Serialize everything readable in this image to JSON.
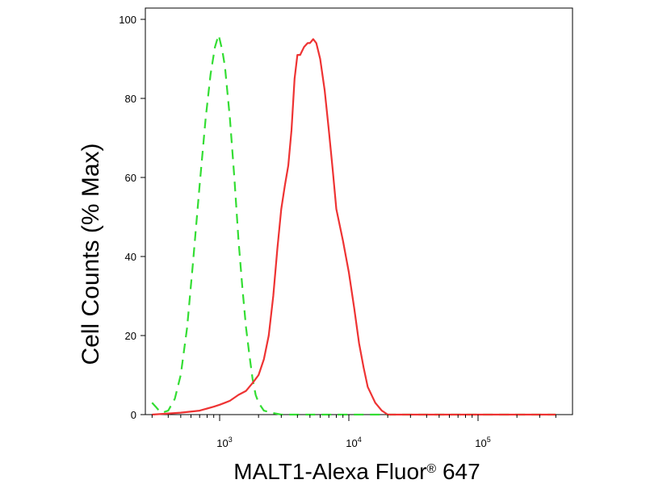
{
  "chart_data": {
    "type": "line",
    "title": "",
    "xlabel": "MALT1-Alexa Fluor",
    "xlabel_superscript": "®",
    "xlabel_suffix": " 647",
    "ylabel": "Cell Counts (% Max)",
    "xscale": "log",
    "xlim": [
      300,
      450000
    ],
    "ylim": [
      0,
      100
    ],
    "y_ticks": [
      0,
      20,
      40,
      60,
      80,
      100
    ],
    "y_tick_labels": [
      "0",
      "20",
      "40",
      "60",
      "80",
      "100"
    ],
    "x_ticks": [
      1000,
      10000,
      100000
    ],
    "x_tick_labels": [
      {
        "base": "10",
        "exp": "3"
      },
      {
        "base": "10",
        "exp": "4"
      },
      {
        "base": "10",
        "exp": "5"
      }
    ],
    "grid": false,
    "legend": "none",
    "series": [
      {
        "color": "#33dd33",
        "dash": "dashed",
        "x": [
          300,
          320,
          340,
          360,
          400,
          450,
          500,
          560,
          620,
          700,
          780,
          850,
          920,
          980,
          1000,
          1050,
          1100,
          1200,
          1300,
          1400,
          1500,
          1600,
          1700,
          1800,
          1900,
          2000,
          2200,
          2500,
          3000,
          5000,
          20000,
          400000
        ],
        "y": [
          3,
          2,
          1,
          0.5,
          1,
          4,
          10,
          22,
          38,
          58,
          75,
          86,
          93,
          96,
          95,
          92,
          88,
          75,
          60,
          44,
          32,
          22,
          15,
          9,
          5,
          3,
          1,
          0.5,
          0,
          0,
          0,
          0
        ]
      },
      {
        "color": "#ee3333",
        "dash": "solid",
        "x": [
          300,
          500,
          700,
          900,
          1000,
          1100,
          1200,
          1400,
          1600,
          1800,
          2000,
          2200,
          2400,
          2600,
          2800,
          3000,
          3200,
          3400,
          3600,
          3800,
          4000,
          4200,
          4500,
          4800,
          5000,
          5300,
          5600,
          6000,
          6500,
          7000,
          7500,
          8000,
          9000,
          10000,
          11000,
          12000,
          13000,
          14000,
          16000,
          18000,
          20000,
          22000,
          25000,
          30000,
          100000,
          400000
        ],
        "y": [
          0,
          0.5,
          1,
          2,
          2.5,
          3,
          3.5,
          5,
          6,
          8,
          10,
          14,
          20,
          30,
          42,
          52,
          58,
          63,
          72,
          85,
          91,
          91,
          93,
          94,
          94,
          95,
          94,
          90,
          82,
          72,
          62,
          52,
          44,
          36,
          27,
          18,
          12,
          7,
          3,
          1,
          0,
          0,
          0,
          0,
          0,
          0
        ]
      }
    ]
  }
}
